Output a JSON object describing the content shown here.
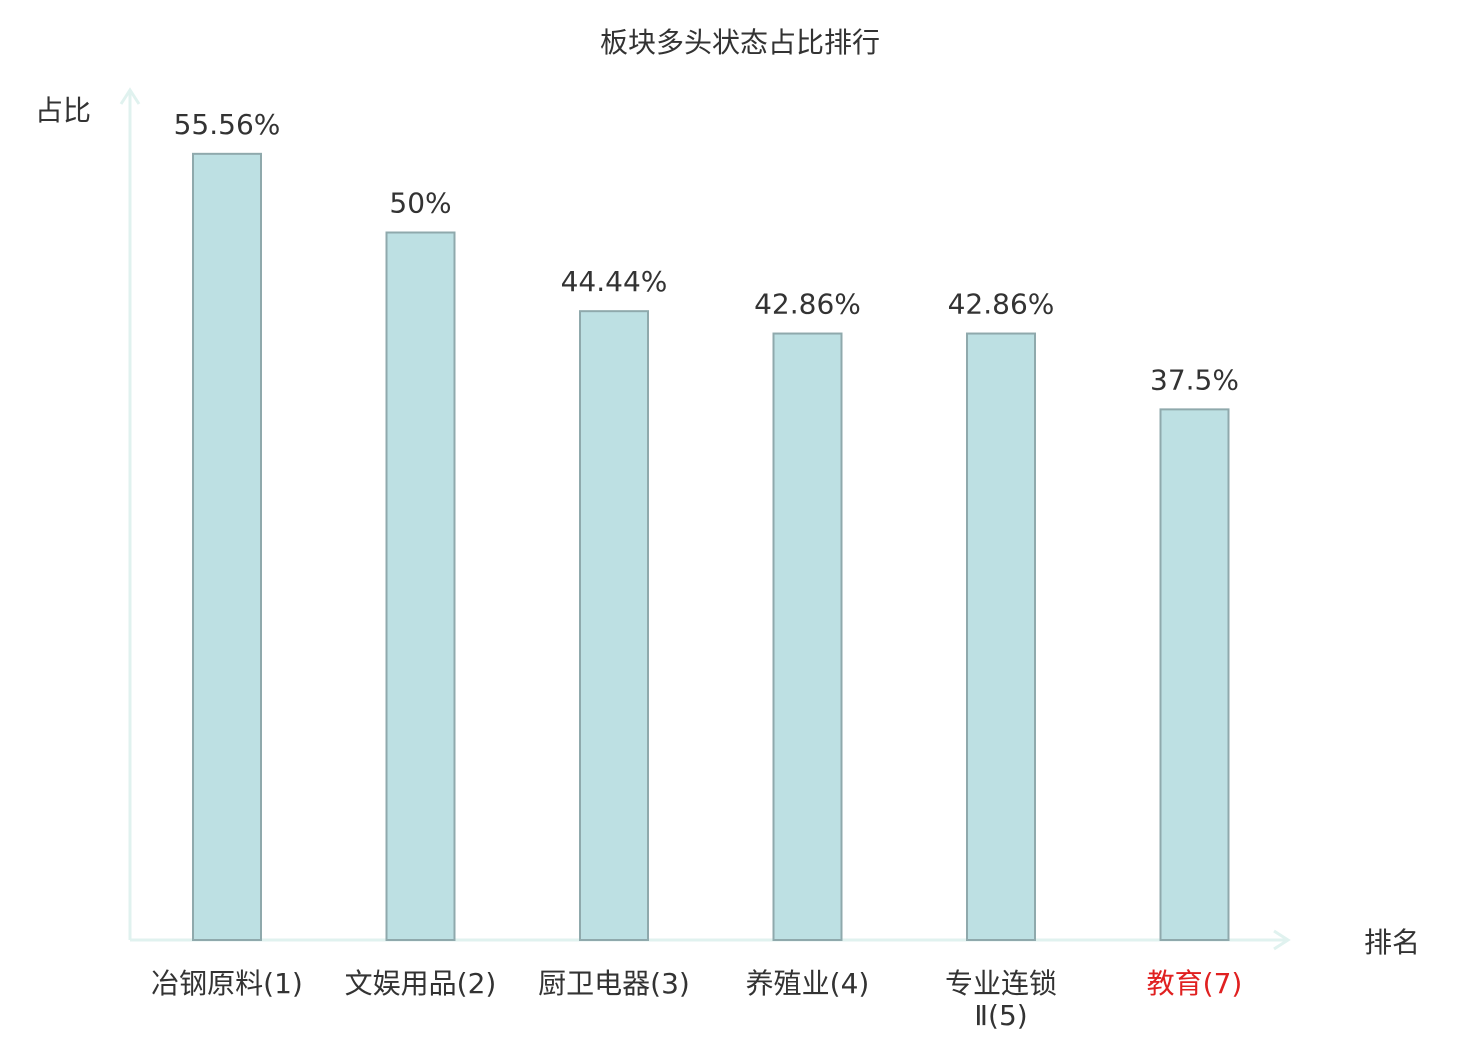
{
  "colors": {
    "bar_fill": "#bde0e3",
    "bar_stroke": "#8fa9ac",
    "axis": "#e0f2ef",
    "text": "#333333",
    "highlight": "#e02020"
  },
  "chart_data": {
    "type": "bar",
    "title": "板块多头状态占比排行",
    "ylabel": "占比",
    "xlabel": "排名",
    "ylim": [
      0,
      60
    ],
    "grid": false,
    "legend": "none",
    "categories": [
      "冶钢原料(1)",
      "文娱用品(2)",
      "厨卫电器(3)",
      "养殖业(4)",
      "专业连锁Ⅱ(5)",
      "教育(7)"
    ],
    "category_lines": [
      [
        "冶钢原料(1)"
      ],
      [
        "文娱用品(2)"
      ],
      [
        "厨卫电器(3)"
      ],
      [
        "养殖业(4)"
      ],
      [
        "专业连锁",
        "Ⅱ(5)"
      ],
      [
        "教育(7)"
      ]
    ],
    "highlighted": [
      false,
      false,
      false,
      false,
      false,
      true
    ],
    "values": [
      55.56,
      50,
      44.44,
      42.86,
      42.86,
      37.5
    ],
    "value_labels": [
      "55.56%",
      "50%",
      "44.44%",
      "42.86%",
      "42.86%",
      "37.5%"
    ]
  }
}
